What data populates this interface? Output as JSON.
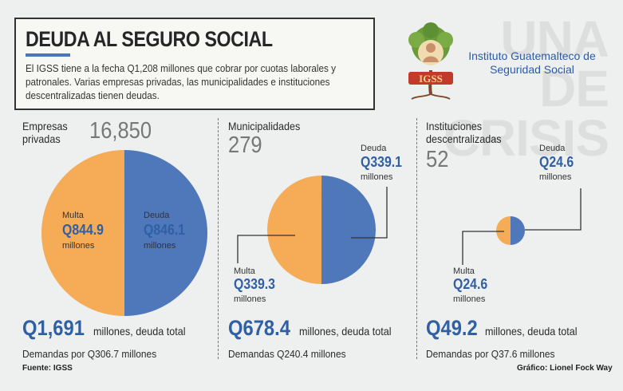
{
  "header": {
    "title": "DEUDA AL SEGURO SOCIAL",
    "intro": "El IGSS tiene a la fecha Q1,208 millones que cobrar por cuotas laborales y patronales. Varias empresas privadas, las municipalidades e instituciones descentralizadas tienen deudas."
  },
  "background_text": [
    "UNA",
    "DE",
    "CRISIS"
  ],
  "logo": {
    "text": "IGSS",
    "icon": "igss-tree-mother-child-logo"
  },
  "institution": "Instituto Guatemalteco de Seguridad Social",
  "colors": {
    "multa": "#f6ab57",
    "deuda": "#4f78bb",
    "accent": "#2f5fa4",
    "rule": "#4a76b8"
  },
  "panels": [
    {
      "label": "Empresas privadas",
      "count": "16,850",
      "multa_label": "Multa",
      "multa_value": "Q844.9",
      "multa_unit": "millones",
      "deuda_label": "Deuda",
      "deuda_value": "Q846.1",
      "deuda_unit": "millones",
      "total_value": "Q1,691",
      "total_text": "millones, deuda total",
      "demand": "Demandas por Q306.7 millones"
    },
    {
      "label": "Municipalidades",
      "count": "279",
      "multa_label": "Multa",
      "multa_value": "Q339.3",
      "multa_unit": "millones",
      "deuda_label": "Deuda",
      "deuda_value": "Q339.1",
      "deuda_unit": "millones",
      "total_value": "Q678.4",
      "total_text": "millones, deuda total",
      "demand": "Demandas Q240.4 millones"
    },
    {
      "label": "Instituciones descentralizadas",
      "count": "52",
      "multa_label": "Multa",
      "multa_value": "Q24.6",
      "multa_unit": "millones",
      "deuda_label": "Deuda",
      "deuda_value": "Q24.6",
      "deuda_unit": "millones",
      "total_value": "Q49.2",
      "total_text": "millones, deuda total",
      "demand": "Demandas por Q37.6 millones"
    }
  ],
  "source": "Fuente: IGSS",
  "credit": "Gráfico: Lionel Fock Way",
  "chart_data": [
    {
      "type": "pie",
      "title": "Empresas privadas",
      "categories": [
        "Multa",
        "Deuda"
      ],
      "values": [
        844.9,
        846.1
      ],
      "total": 1691,
      "unit": "millones de quetzales"
    },
    {
      "type": "pie",
      "title": "Municipalidades",
      "categories": [
        "Multa",
        "Deuda"
      ],
      "values": [
        339.3,
        339.1
      ],
      "total": 678.4,
      "unit": "millones de quetzales"
    },
    {
      "type": "pie",
      "title": "Instituciones descentralizadas",
      "categories": [
        "Multa",
        "Deuda"
      ],
      "values": [
        24.6,
        24.6
      ],
      "total": 49.2,
      "unit": "millones de quetzales"
    }
  ]
}
